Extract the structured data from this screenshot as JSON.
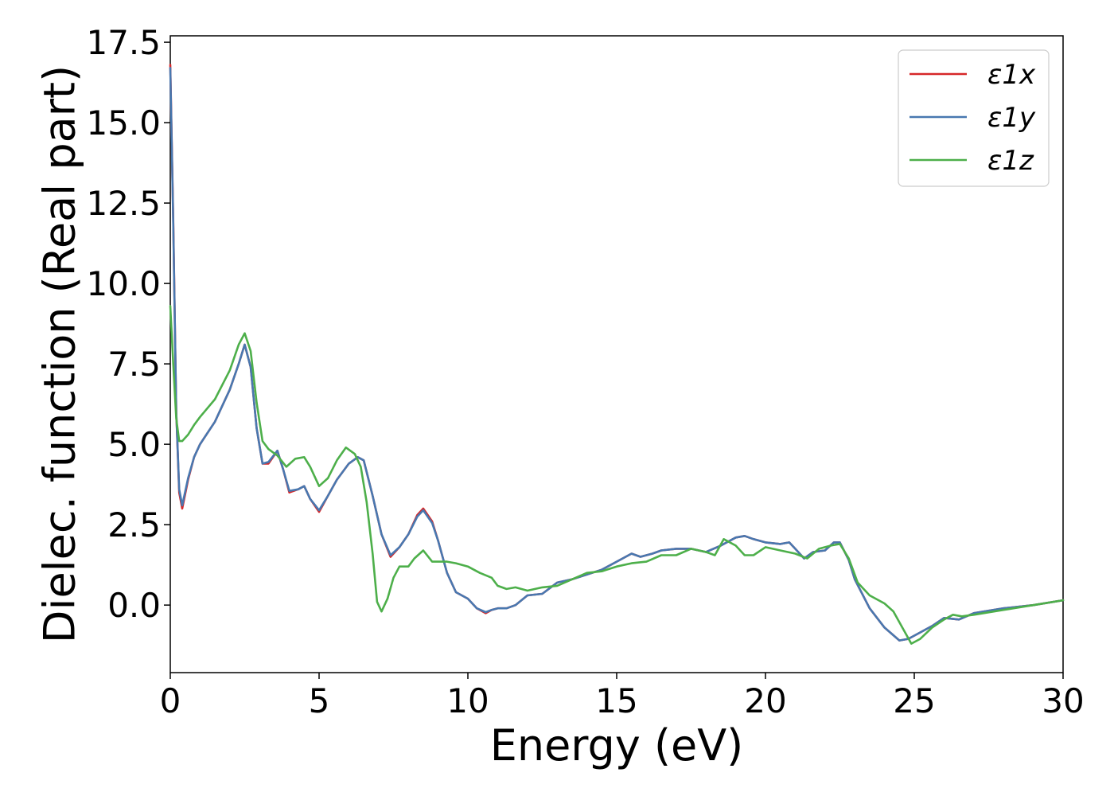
{
  "chart_data": {
    "type": "line",
    "title": "",
    "xlabel": "Energy (eV)",
    "ylabel": "Dielec. function (Real part)",
    "xlim": [
      0,
      30
    ],
    "ylim": [
      -2.1,
      17.7
    ],
    "xticks": [
      0,
      5,
      10,
      15,
      20,
      25,
      30
    ],
    "xtick_labels": [
      "0",
      "5",
      "10",
      "15",
      "20",
      "25",
      "30"
    ],
    "yticks": [
      0.0,
      2.5,
      5.0,
      7.5,
      10.0,
      12.5,
      15.0,
      17.5
    ],
    "ytick_labels": [
      "0.0",
      "2.5",
      "5.0",
      "7.5",
      "10.0",
      "12.5",
      "15.0",
      "17.5"
    ],
    "grid": false,
    "legend_position": "top-right",
    "series": [
      {
        "name": "ε1x",
        "color": "#d62728",
        "x": [
          0,
          0.1,
          0.2,
          0.3,
          0.4,
          0.6,
          0.8,
          1.0,
          1.5,
          2.0,
          2.3,
          2.5,
          2.7,
          2.9,
          3.1,
          3.3,
          3.6,
          3.8,
          4.0,
          4.3,
          4.5,
          4.7,
          5.0,
          5.3,
          5.6,
          6.0,
          6.3,
          6.5,
          6.8,
          7.1,
          7.4,
          7.7,
          8.0,
          8.3,
          8.5,
          8.8,
          9.0,
          9.3,
          9.6,
          10.0,
          10.3,
          10.6,
          10.8,
          11.0,
          11.3,
          11.6,
          12.0,
          12.5,
          13.0,
          13.5,
          14.0,
          14.5,
          15.0,
          15.5,
          15.8,
          16.2,
          16.5,
          17.0,
          17.5,
          18.0,
          18.5,
          19.0,
          19.3,
          19.6,
          20.0,
          20.5,
          20.8,
          21.0,
          21.3,
          21.6,
          22.0,
          22.3,
          22.5,
          22.8,
          23.0,
          23.5,
          24.0,
          24.5,
          24.8,
          25.2,
          25.6,
          26.0,
          26.5,
          27.0,
          28.0,
          29.0,
          30.0
        ],
        "values": [
          16.8,
          12.0,
          6.0,
          3.5,
          3.0,
          3.9,
          4.6,
          5.0,
          5.7,
          6.7,
          7.5,
          8.1,
          7.4,
          5.5,
          4.4,
          4.4,
          4.8,
          4.2,
          3.5,
          3.6,
          3.7,
          3.3,
          2.9,
          3.4,
          3.9,
          4.4,
          4.6,
          4.5,
          3.4,
          2.2,
          1.5,
          1.8,
          2.2,
          2.8,
          3.0,
          2.6,
          2.0,
          1.0,
          0.4,
          0.2,
          -0.1,
          -0.25,
          -0.15,
          -0.1,
          -0.1,
          0.0,
          0.3,
          0.35,
          0.7,
          0.8,
          0.95,
          1.1,
          1.35,
          1.6,
          1.5,
          1.6,
          1.7,
          1.75,
          1.75,
          1.65,
          1.85,
          2.1,
          2.15,
          2.05,
          1.95,
          1.9,
          1.95,
          1.75,
          1.45,
          1.65,
          1.7,
          1.95,
          1.95,
          1.4,
          0.8,
          -0.1,
          -0.7,
          -1.1,
          -1.05,
          -0.85,
          -0.65,
          -0.4,
          -0.45,
          -0.25,
          -0.1,
          0.0,
          0.15
        ]
      },
      {
        "name": "ε1y",
        "color": "#4878b0",
        "x": [
          0,
          0.1,
          0.2,
          0.3,
          0.4,
          0.6,
          0.8,
          1.0,
          1.5,
          2.0,
          2.3,
          2.5,
          2.7,
          2.9,
          3.1,
          3.3,
          3.6,
          3.8,
          4.0,
          4.3,
          4.5,
          4.7,
          5.0,
          5.3,
          5.6,
          6.0,
          6.3,
          6.5,
          6.8,
          7.1,
          7.4,
          7.7,
          8.0,
          8.3,
          8.5,
          8.8,
          9.0,
          9.3,
          9.6,
          10.0,
          10.3,
          10.6,
          10.8,
          11.0,
          11.3,
          11.6,
          12.0,
          12.5,
          13.0,
          13.5,
          14.0,
          14.5,
          15.0,
          15.5,
          15.8,
          16.2,
          16.5,
          17.0,
          17.5,
          18.0,
          18.5,
          19.0,
          19.3,
          19.6,
          20.0,
          20.5,
          20.8,
          21.0,
          21.3,
          21.6,
          22.0,
          22.3,
          22.5,
          22.8,
          23.0,
          23.5,
          24.0,
          24.5,
          24.8,
          25.2,
          25.6,
          26.0,
          26.5,
          27.0,
          28.0,
          29.0,
          30.0
        ],
        "values": [
          16.7,
          11.9,
          6.0,
          3.6,
          3.1,
          3.95,
          4.6,
          5.0,
          5.7,
          6.7,
          7.5,
          8.1,
          7.4,
          5.5,
          4.4,
          4.45,
          4.8,
          4.2,
          3.55,
          3.6,
          3.7,
          3.3,
          2.95,
          3.4,
          3.9,
          4.4,
          4.6,
          4.5,
          3.4,
          2.2,
          1.55,
          1.8,
          2.2,
          2.75,
          2.95,
          2.55,
          2.0,
          1.0,
          0.4,
          0.2,
          -0.1,
          -0.22,
          -0.15,
          -0.1,
          -0.1,
          0.0,
          0.3,
          0.35,
          0.7,
          0.8,
          0.95,
          1.1,
          1.35,
          1.6,
          1.5,
          1.6,
          1.7,
          1.75,
          1.75,
          1.65,
          1.85,
          2.1,
          2.15,
          2.05,
          1.95,
          1.9,
          1.95,
          1.75,
          1.45,
          1.65,
          1.7,
          1.95,
          1.95,
          1.4,
          0.8,
          -0.1,
          -0.7,
          -1.1,
          -1.05,
          -0.85,
          -0.65,
          -0.4,
          -0.45,
          -0.25,
          -0.1,
          0.0,
          0.15
        ]
      },
      {
        "name": "ε1z",
        "color": "#4daf4a",
        "x": [
          0,
          0.1,
          0.2,
          0.3,
          0.4,
          0.6,
          0.8,
          1.0,
          1.5,
          2.0,
          2.3,
          2.5,
          2.7,
          2.9,
          3.1,
          3.3,
          3.6,
          3.9,
          4.2,
          4.5,
          4.7,
          5.0,
          5.3,
          5.6,
          5.9,
          6.2,
          6.4,
          6.6,
          6.8,
          6.95,
          7.1,
          7.3,
          7.5,
          7.7,
          8.0,
          8.2,
          8.5,
          8.8,
          9.0,
          9.3,
          9.6,
          10.0,
          10.4,
          10.8,
          11.0,
          11.3,
          11.6,
          12.0,
          12.5,
          13.0,
          13.5,
          14.0,
          14.5,
          15.0,
          15.5,
          16.0,
          16.5,
          17.0,
          17.5,
          18.0,
          18.3,
          18.6,
          19.0,
          19.3,
          19.6,
          20.0,
          20.5,
          21.0,
          21.4,
          21.8,
          22.2,
          22.5,
          22.8,
          23.1,
          23.5,
          24.0,
          24.3,
          24.6,
          24.9,
          25.2,
          25.6,
          26.0,
          26.3,
          26.6,
          27.0,
          28.0,
          29.0,
          30.0
        ],
        "values": [
          9.3,
          7.5,
          5.8,
          5.1,
          5.1,
          5.3,
          5.6,
          5.85,
          6.4,
          7.3,
          8.1,
          8.45,
          7.9,
          6.3,
          5.1,
          4.85,
          4.65,
          4.3,
          4.55,
          4.6,
          4.3,
          3.7,
          3.95,
          4.5,
          4.9,
          4.7,
          4.3,
          3.2,
          1.6,
          0.1,
          -0.2,
          0.2,
          0.85,
          1.2,
          1.2,
          1.45,
          1.7,
          1.35,
          1.35,
          1.35,
          1.3,
          1.2,
          1.0,
          0.85,
          0.6,
          0.5,
          0.55,
          0.45,
          0.55,
          0.6,
          0.8,
          1.0,
          1.05,
          1.2,
          1.3,
          1.35,
          1.55,
          1.55,
          1.75,
          1.65,
          1.55,
          2.05,
          1.85,
          1.55,
          1.55,
          1.8,
          1.7,
          1.6,
          1.45,
          1.75,
          1.85,
          1.9,
          1.45,
          0.7,
          0.3,
          0.05,
          -0.2,
          -0.7,
          -1.2,
          -1.05,
          -0.7,
          -0.45,
          -0.3,
          -0.35,
          -0.3,
          -0.15,
          0.0,
          0.15
        ]
      }
    ]
  }
}
